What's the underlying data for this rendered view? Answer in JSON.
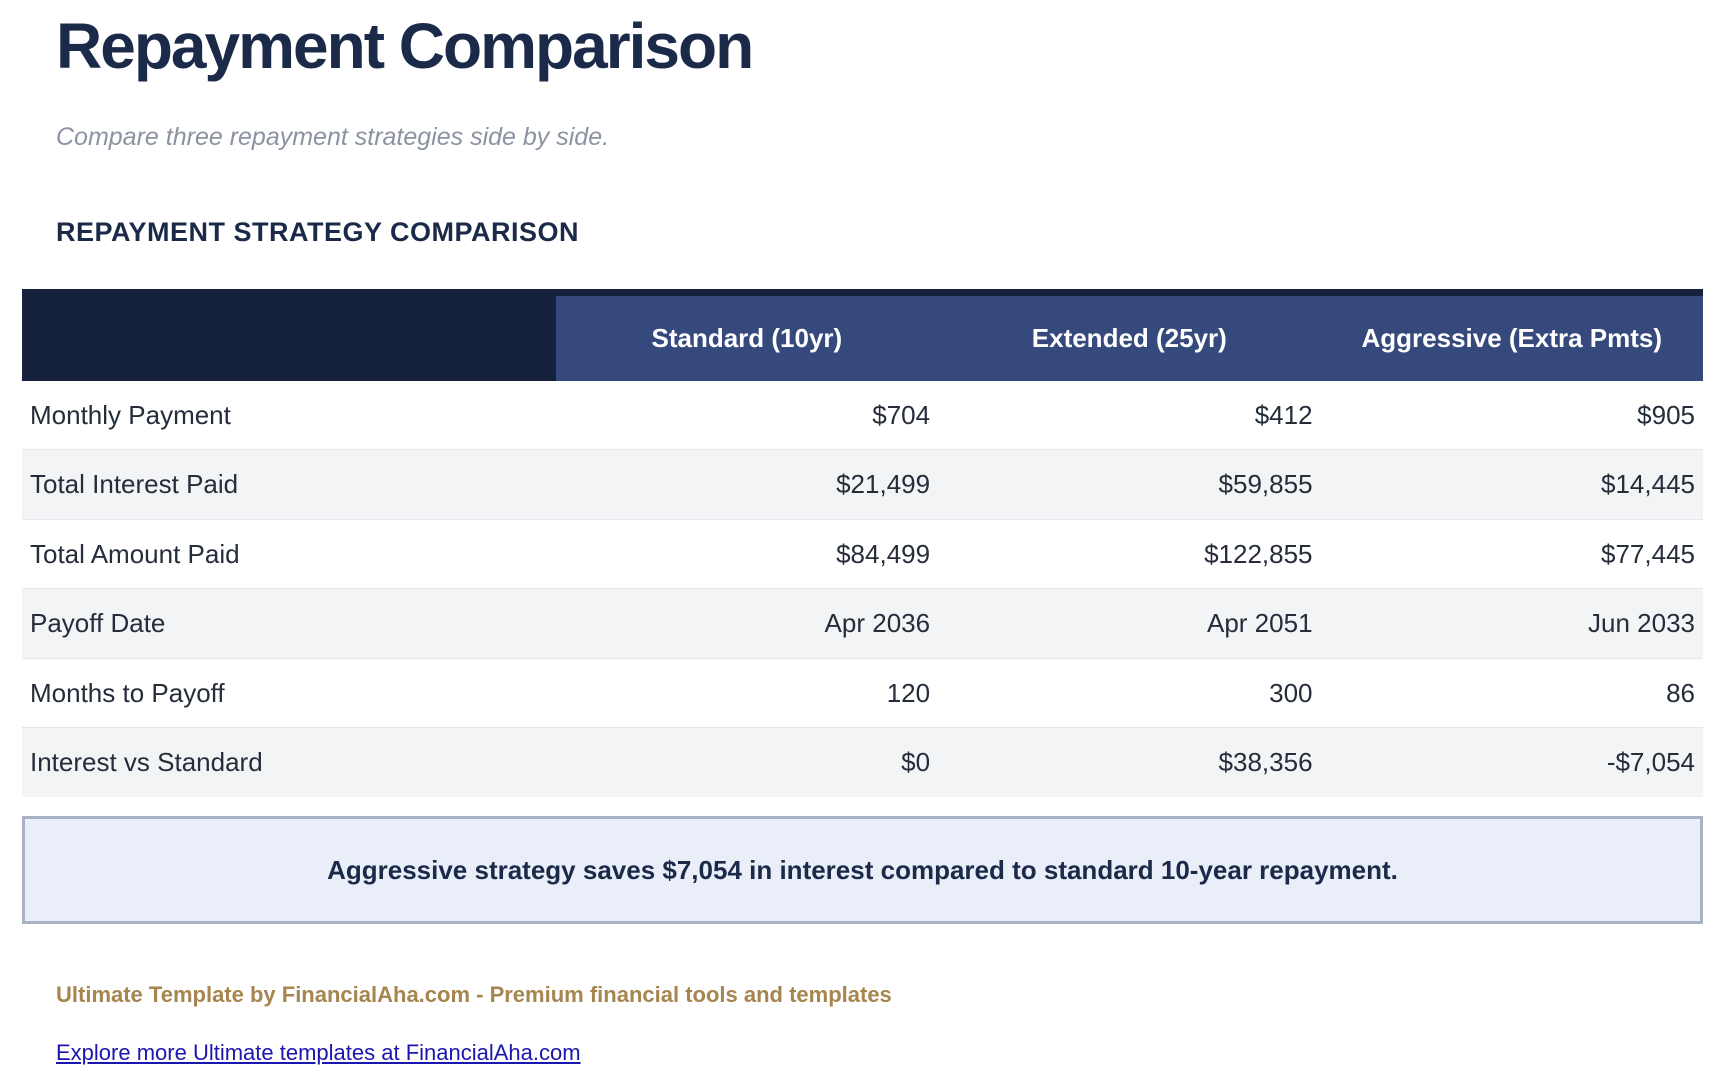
{
  "page": {
    "title": "Repayment Comparison",
    "subtitle": "Compare three repayment strategies side by side.",
    "section_heading": "REPAYMENT STRATEGY COMPARISON"
  },
  "table": {
    "columns": [
      "",
      "Standard (10yr)",
      "Extended (25yr)",
      "Aggressive (Extra Pmts)"
    ],
    "rows": [
      {
        "label": "Monthly Payment",
        "values": [
          "$704",
          "$412",
          "$905"
        ]
      },
      {
        "label": "Total Interest Paid",
        "values": [
          "$21,499",
          "$59,855",
          "$14,445"
        ]
      },
      {
        "label": "Total Amount Paid",
        "values": [
          "$84,499",
          "$122,855",
          "$77,445"
        ]
      },
      {
        "label": "Payoff Date",
        "values": [
          "Apr 2036",
          "Apr 2051",
          "Jun 2033"
        ]
      },
      {
        "label": "Months to Payoff",
        "values": [
          "120",
          "300",
          "86"
        ]
      },
      {
        "label": "Interest vs Standard",
        "values": [
          "$0",
          "$38,356",
          "-$7,054"
        ]
      }
    ]
  },
  "callout": {
    "text": "Aggressive strategy saves $7,054 in interest compared to standard 10-year repayment."
  },
  "footer": {
    "brand_line": "Ultimate Template by FinancialAha.com - Premium financial tools and templates",
    "link_text": "Explore more Ultimate templates at FinancialAha.com"
  },
  "colors": {
    "header_dark_navy": "#16213d",
    "header_medium_navy": "#35497c",
    "title_navy": "#1c2a4a",
    "stripe_gray": "#f3f4f6",
    "callout_background": "#eaeef8",
    "callout_border": "#a9b1c4",
    "brand_gold": "#a6854e",
    "link_blue": "#1b16ae",
    "subtitle_gray": "#8b93a1"
  }
}
